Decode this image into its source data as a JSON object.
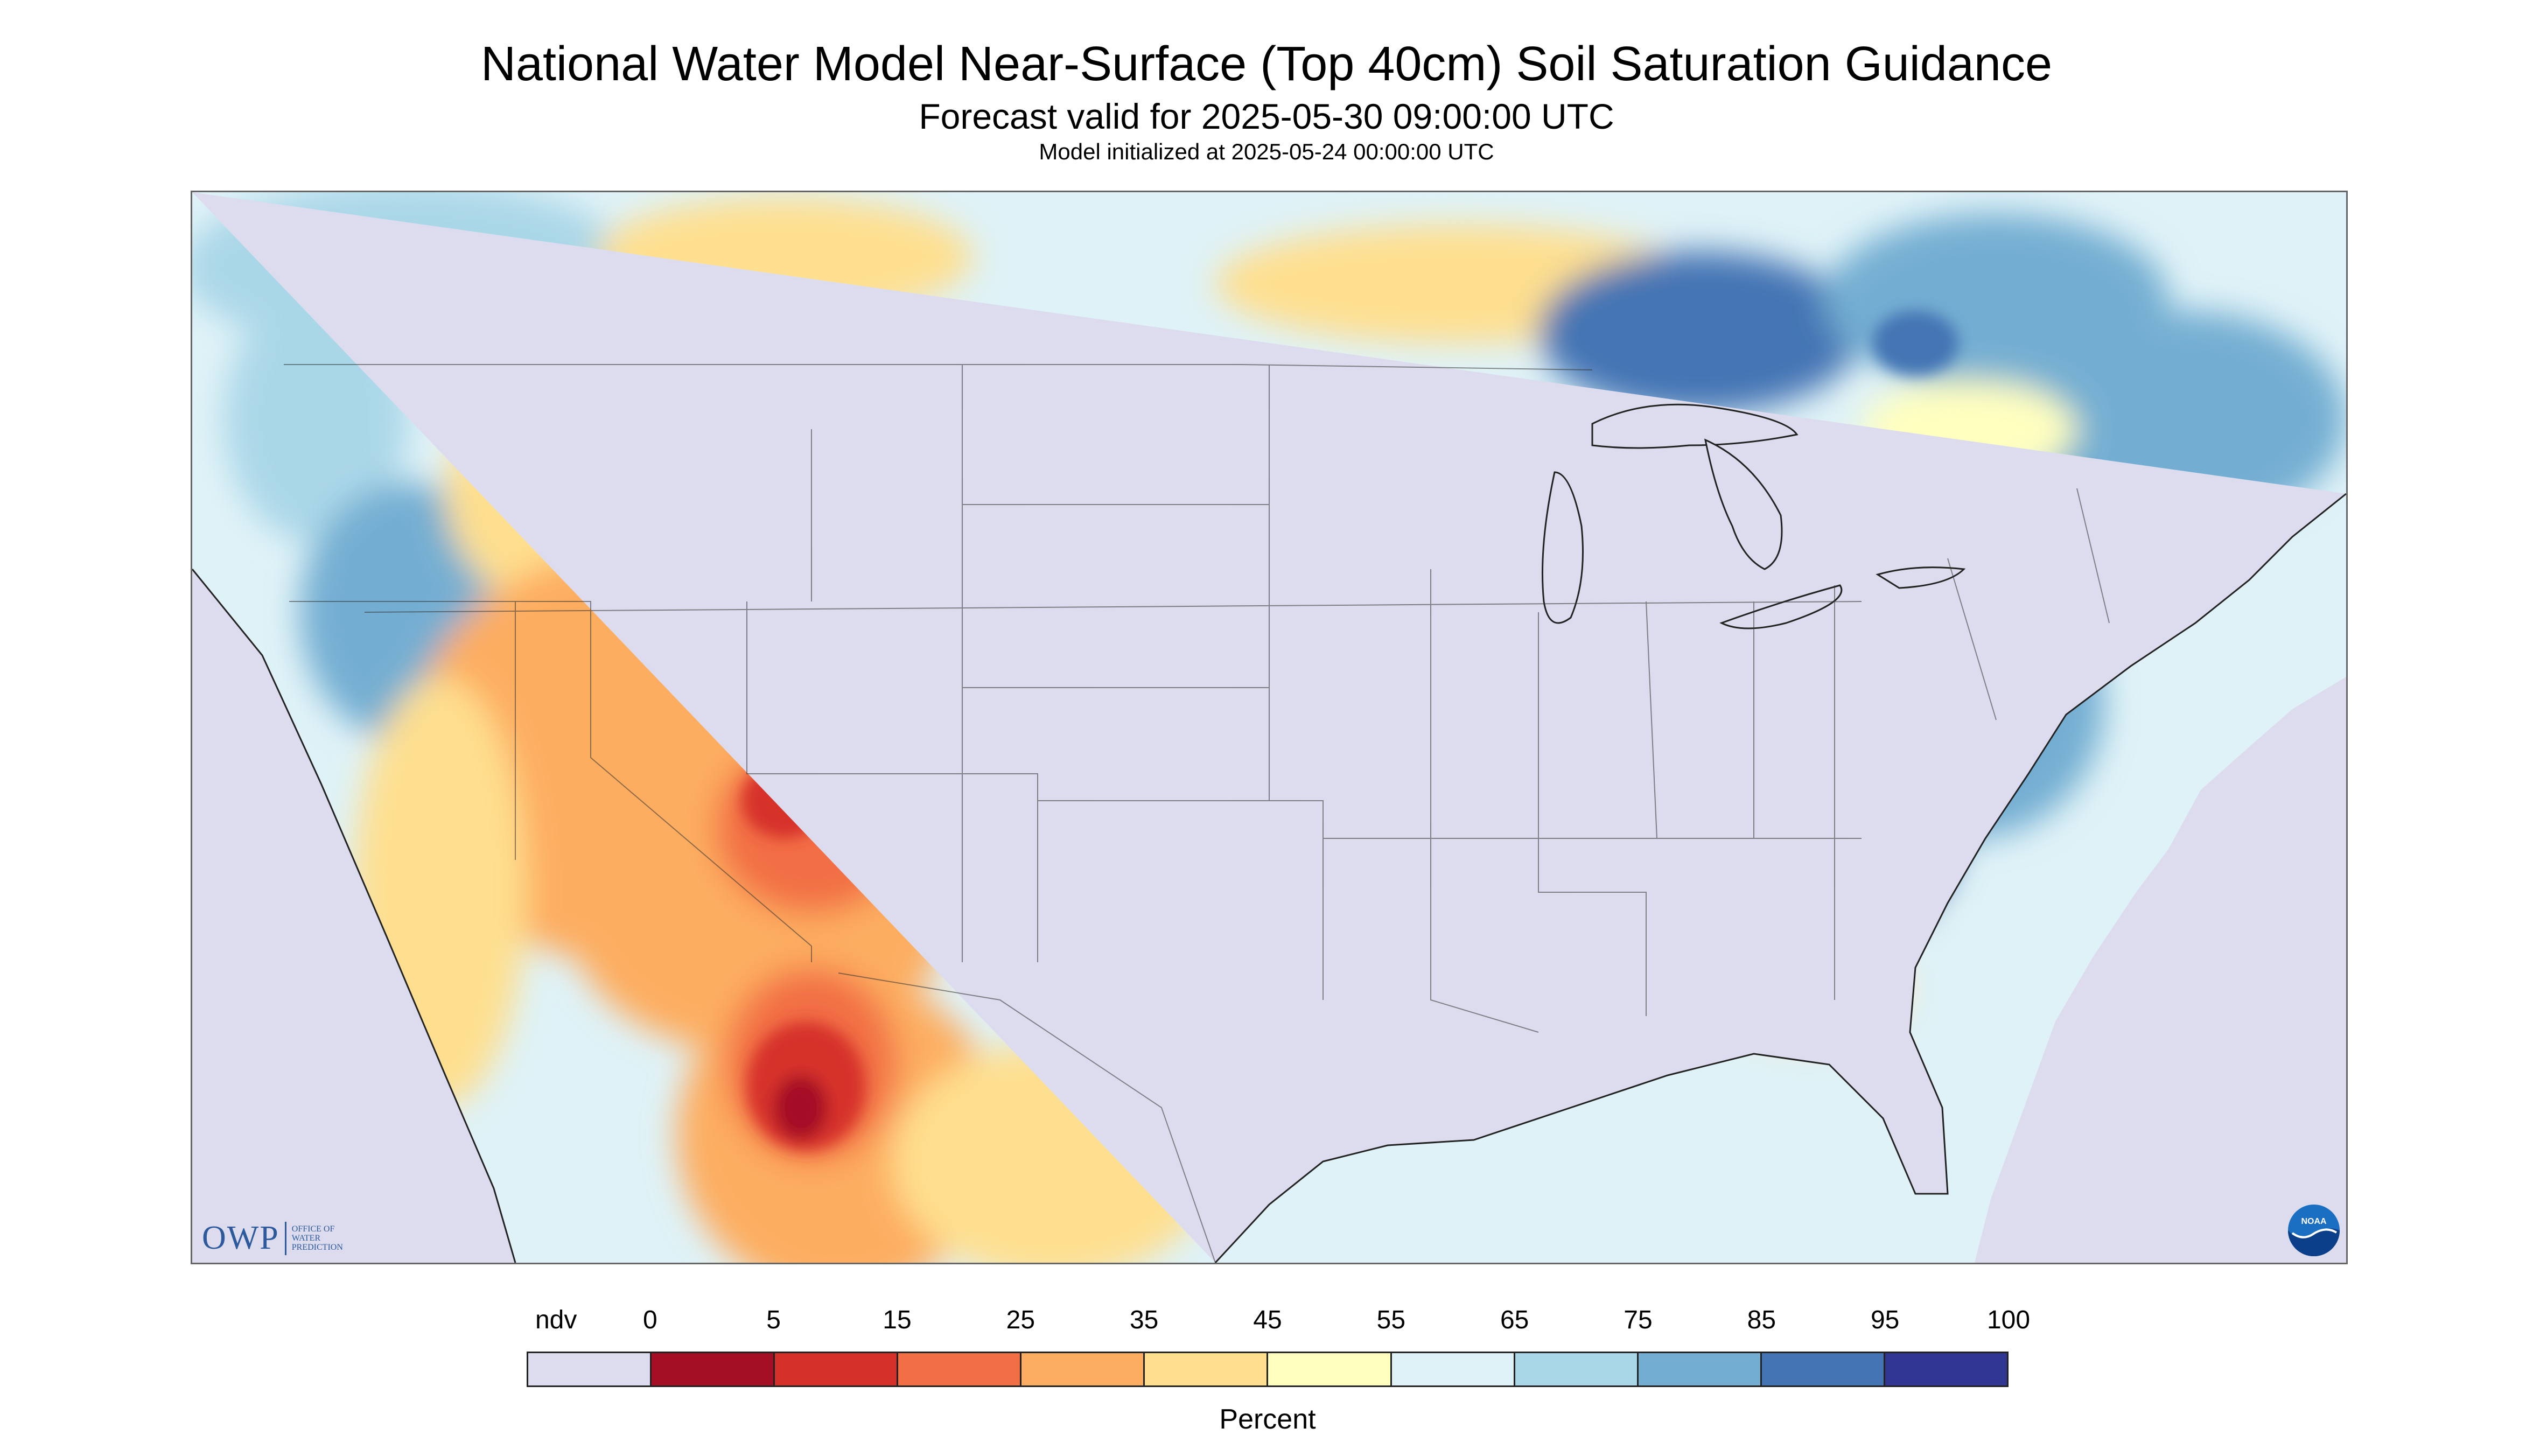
{
  "header": {
    "title": "National Water Model Near-Surface (Top 40cm) Soil Saturation Guidance",
    "forecast": "Forecast valid for 2025-05-30 09:00:00 UTC",
    "initialized": "Model initialized at 2025-05-24 00:00:00 UTC"
  },
  "legend": {
    "unit": "Percent",
    "ndv_label": "ndv",
    "ticks": [
      "0",
      "5",
      "15",
      "25",
      "35",
      "45",
      "55",
      "65",
      "75",
      "85",
      "95",
      "100"
    ],
    "colors": [
      "#dcdcee",
      "#a50f26",
      "#d6302a",
      "#f26e44",
      "#fdad61",
      "#fedf8f",
      "#ffffbf",
      "#dff2f7",
      "#aad7e8",
      "#73aed2",
      "#4574b4",
      "#313693"
    ]
  },
  "map": {
    "background_color": "#dcdcee",
    "logos": {
      "owp": {
        "letters": "OWP",
        "subtitle_lines": [
          "Office of",
          "Water",
          "Prediction"
        ]
      },
      "noaa": {
        "label": "NOAA"
      }
    }
  }
}
